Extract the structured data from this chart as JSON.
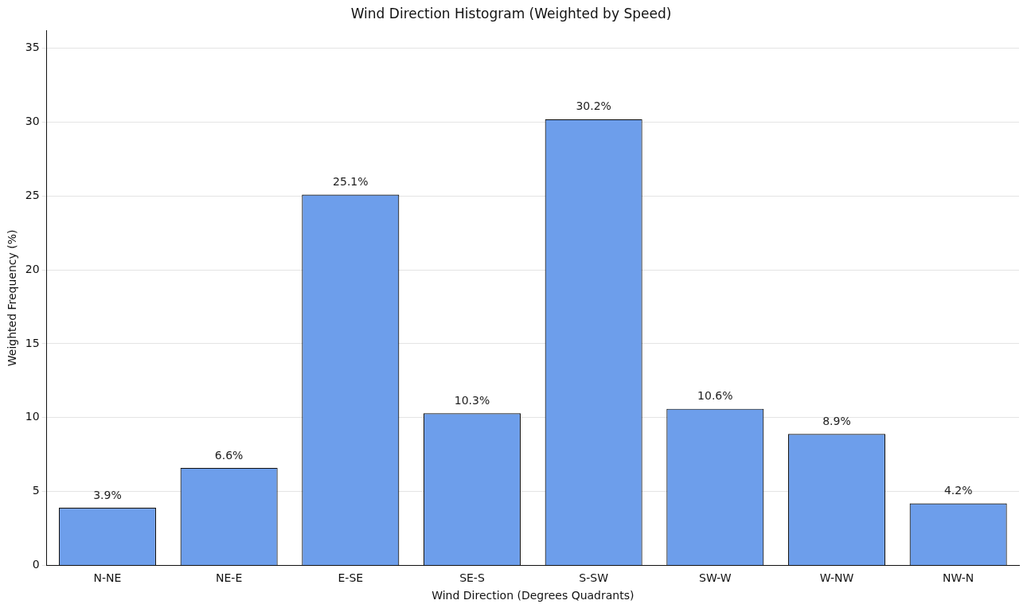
{
  "chart_data": {
    "type": "bar",
    "title": "Wind Direction Histogram (Weighted by Speed)",
    "xlabel": "Wind Direction (Degrees Quadrants)",
    "ylabel": "Weighted Frequency (%)",
    "categories": [
      "N-NE",
      "NE-E",
      "E-SE",
      "SE-S",
      "S-SW",
      "SW-W",
      "W-NW",
      "NW-N"
    ],
    "values": [
      3.9,
      6.6,
      25.1,
      10.3,
      30.2,
      10.6,
      8.9,
      4.2
    ],
    "value_labels": [
      "3.9%",
      "6.6%",
      "25.1%",
      "10.3%",
      "30.2%",
      "10.6%",
      "8.9%",
      "4.2%"
    ],
    "color": "#6d9eeb",
    "ylim": [
      0,
      36.2
    ],
    "yticks": [
      0,
      5,
      10,
      15,
      20,
      25,
      30,
      35
    ],
    "grid": "y",
    "legend": false
  }
}
